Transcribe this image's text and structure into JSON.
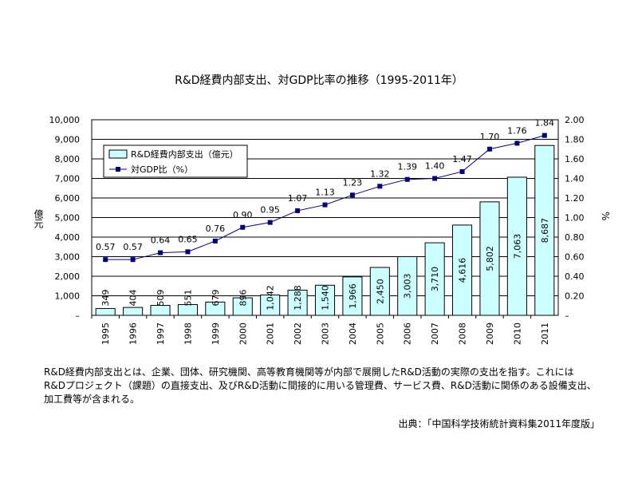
{
  "chart_data": {
    "type": "bar+line",
    "title": "R&D経費内部支出、対GDP比率の推移（1995-2011年）",
    "categories": [
      "1995",
      "1996",
      "1997",
      "1998",
      "1999",
      "2000",
      "2001",
      "2002",
      "2003",
      "2004",
      "2005",
      "2006",
      "2007",
      "2008",
      "2009",
      "2010",
      "2011"
    ],
    "series": [
      {
        "name": "R&D経費内部支出（億元）",
        "type": "bar",
        "axis": "left",
        "color": "#ccffff",
        "values": [
          349,
          404,
          509,
          551,
          679,
          896,
          1042,
          1288,
          1540,
          1966,
          2450,
          3003,
          3710,
          4616,
          5802,
          7063,
          8687
        ],
        "labels": [
          "349",
          "404",
          "509",
          "551",
          "679",
          "896",
          "1,042",
          "1,288",
          "1,540",
          "1,966",
          "2,450",
          "3,003",
          "3,710",
          "4,616",
          "5,802",
          "7,063",
          "8,687"
        ]
      },
      {
        "name": "対GDP比（%）",
        "type": "line",
        "axis": "right",
        "color": "#000080",
        "values": [
          0.57,
          0.57,
          0.64,
          0.65,
          0.76,
          0.9,
          0.95,
          1.07,
          1.13,
          1.23,
          1.32,
          1.39,
          1.4,
          1.47,
          1.7,
          1.76,
          1.84
        ],
        "labels": [
          "0.57",
          "0.57",
          "0.64",
          "0.65",
          "0.76",
          "0.90",
          "0.95",
          "1.07",
          "1.13",
          "1.23",
          "1.32",
          "1.39",
          "1.40",
          "1.47",
          "1.70",
          "1.76",
          "1.84"
        ]
      }
    ],
    "ylabel_left": "億元",
    "ylabel_right": "%",
    "ylim_left": [
      0,
      10000
    ],
    "ylim_right": [
      0,
      2.0
    ],
    "yticks_left": [
      "–",
      "1,000",
      "2,000",
      "3,000",
      "4,000",
      "5,000",
      "6,000",
      "7,000",
      "8,000",
      "9,000",
      "10,000"
    ],
    "yticks_right": [
      "–",
      "0.20",
      "0.40",
      "0.60",
      "0.80",
      "1.00",
      "1.20",
      "1.40",
      "1.60",
      "1.80",
      "2.00"
    ],
    "grid": true,
    "legend_position": "top-left"
  },
  "note": [
    "R&D経費内部支出とは、企業、団体、研究機関、高等教育機関等が内部で展開したR&D活動の実際の支出を指す。これには",
    "R&Dプロジェクト（課題）の直接支出、及びR&D活動に間接的に用いる管理費、サービス費、R&D活動に関係のある設備支出、",
    "加工費等が含まれる。"
  ],
  "source": "出典：「中国科学技術統計資料集2011年度版」"
}
